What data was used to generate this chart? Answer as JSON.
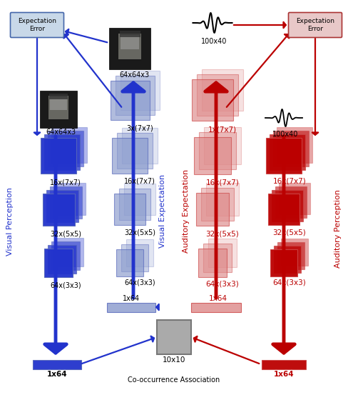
{
  "fig_width": 4.88,
  "fig_height": 5.6,
  "dpi": 100,
  "blue": "#2233CC",
  "blue_mid": "#5566BB",
  "blue_pale": "#8899CC",
  "red": "#BB0000",
  "red_mid": "#CC4444",
  "red_pale": "#DD8888",
  "blue_box_fc": "#C8D8E8",
  "blue_box_ec": "#4466AA",
  "red_box_fc": "#E8C8C8",
  "red_box_ec": "#AA3333",
  "gray_fc": "#AAAAAA",
  "gray_ec": "#777777",
  "bg": "#FFFFFF",
  "vis_perc": "Visual Perception",
  "vis_exp": "Visual Expectation",
  "aud_exp": "Auditory Expectation",
  "aud_perc": "Auditory Perception",
  "cooc_lbl": "Co-occurrence Association",
  "cooc_sz": "10x10",
  "vis_in": "64x64x3",
  "aud_in": "100x40",
  "vec1x64": "1x64",
  "exp_err": "Expectation\nError",
  "vp_layers": [
    "16x(7x7)",
    "32x(5x5)",
    "64x(3x3)"
  ],
  "ve_layers": [
    "3x(7x7)",
    "16x(7x7)",
    "32x(5x5)",
    "64x(3x3)"
  ],
  "ae_layers": [
    "1x(7x7)",
    "16x(7x7)",
    "32x(5x5)",
    "64x(3x3)"
  ],
  "ap_layers": [
    "16x(7x7)",
    "32x(5x5)",
    "64x(3x3)"
  ]
}
